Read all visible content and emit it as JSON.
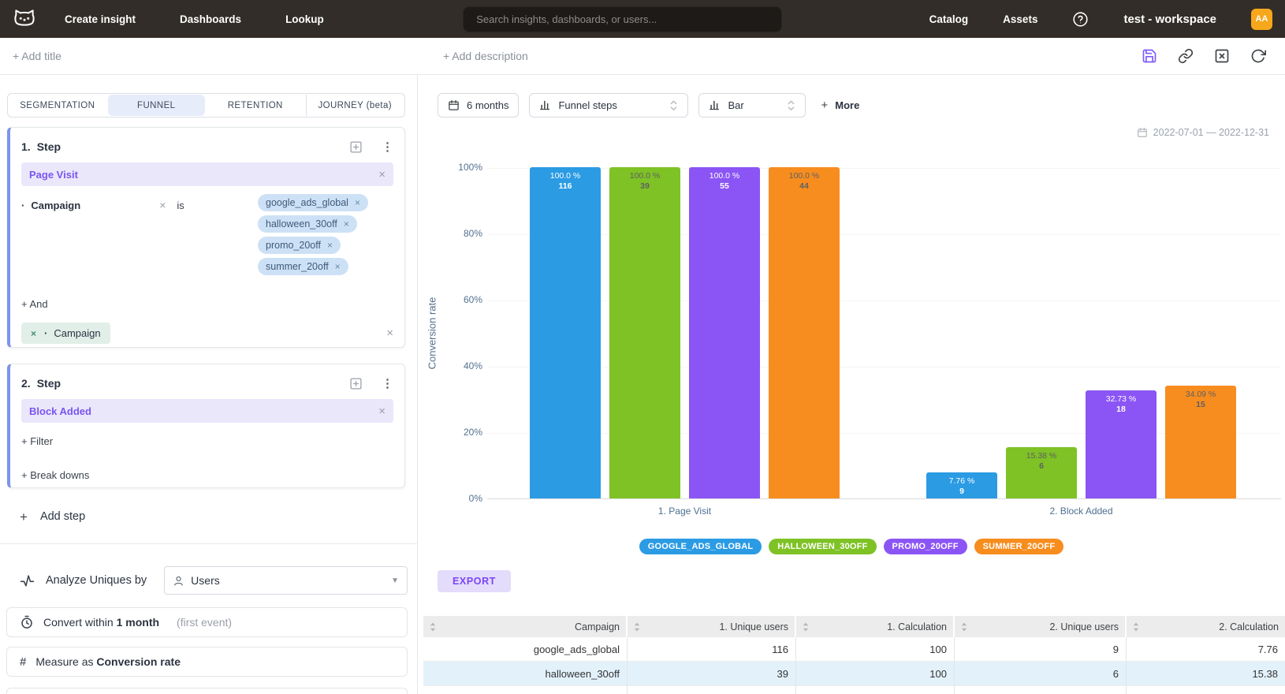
{
  "navbar": {
    "brand_icon": "cat-logo",
    "links": [
      {
        "label": "Create insight"
      },
      {
        "label": "Dashboards"
      },
      {
        "label": "Lookup"
      }
    ],
    "search": {
      "placeholder": "Search insights, dashboards, or users..."
    },
    "right_links": [
      {
        "label": "Catalog"
      },
      {
        "label": "Assets"
      }
    ],
    "help_icon": "question-circle-icon",
    "workspace_label": "test - workspace",
    "avatar_initials": "AA",
    "avatar_color": "#f6a71b"
  },
  "insight_header": {
    "add_title_label": "+ Add title",
    "add_description_label": "+ Add description",
    "action_icons": [
      "save-icon",
      "link-icon",
      "close-box-icon",
      "refresh-icon"
    ],
    "accent_color": "#7c5cfa"
  },
  "builder": {
    "tabs": [
      {
        "label": "SEGMENTATION",
        "active": false
      },
      {
        "label": "FUNNEL",
        "active": true
      },
      {
        "label": "RETENTION",
        "active": false
      },
      {
        "label": "JOURNEY (beta)",
        "active": false
      }
    ],
    "steps": [
      {
        "number": "1.",
        "title": "Step",
        "event": "Page Visit",
        "filter": {
          "property": "Campaign",
          "operator": "is",
          "values": [
            "google_ads_global",
            "halloween_30off",
            "promo_20off",
            "summer_20off"
          ]
        },
        "and_label": "+ And",
        "breakdown": {
          "property": "Campaign"
        }
      },
      {
        "number": "2.",
        "title": "Step",
        "event": "Block Added",
        "filter_label": "+ Filter",
        "breakdowns_label": "+ Break downs"
      }
    ],
    "add_step_label": "Add step",
    "analyze": {
      "label": "Analyze Uniques by",
      "value": "Users"
    },
    "convert": {
      "prefix": "Convert within",
      "value": "1 month",
      "suffix": "(first event)"
    },
    "measure": {
      "prefix": "Measure as",
      "value": "Conversion rate"
    }
  },
  "chart_toolbar": {
    "date_button": "6 months",
    "view_select": "Funnel steps",
    "type_select": "Bar",
    "more_label": "More",
    "date_range": "2022-07-01 — 2022-12-31"
  },
  "chart_data": {
    "type": "bar",
    "title": "",
    "xlabel": "",
    "ylabel": "Conversion rate",
    "ylim": [
      0,
      100
    ],
    "ytick_labels": [
      "100%",
      "80%",
      "60%",
      "40%",
      "20%",
      "0%"
    ],
    "grid": true,
    "legend_position": "bottom",
    "categories": [
      "1. Page Visit",
      "2. Block Added"
    ],
    "series": [
      {
        "name": "GOOGLE_ADS_GLOBAL",
        "color": "#2b9be4",
        "label_color": "#ffffff",
        "values": [
          100.0,
          7.76
        ],
        "counts": [
          116,
          9
        ]
      },
      {
        "name": "HALLOWEEN_30OFF",
        "color": "#7ec225",
        "label_color": "#5f6063",
        "values": [
          100.0,
          15.38
        ],
        "counts": [
          39,
          6
        ]
      },
      {
        "name": "PROMO_20OFF",
        "color": "#8b55f5",
        "label_color": "#ffffff",
        "values": [
          100.0,
          32.73
        ],
        "counts": [
          55,
          18
        ]
      },
      {
        "name": "SUMMER_20OFF",
        "color": "#f78d1e",
        "label_color": "#5f6063",
        "values": [
          100.0,
          34.09
        ],
        "counts": [
          44,
          15
        ]
      }
    ]
  },
  "export_label": "EXPORT",
  "table": {
    "columns": [
      "Campaign",
      "1. Unique users",
      "1. Calculation",
      "2. Unique users",
      "2. Calculation"
    ],
    "rows": [
      {
        "cells": [
          "google_ads_global",
          "116",
          "100",
          "9",
          "7.76"
        ],
        "highlight": false
      },
      {
        "cells": [
          "halloween_30off",
          "39",
          "100",
          "6",
          "15.38"
        ],
        "highlight": true
      }
    ],
    "highlight_color": "#e3f1fb"
  }
}
